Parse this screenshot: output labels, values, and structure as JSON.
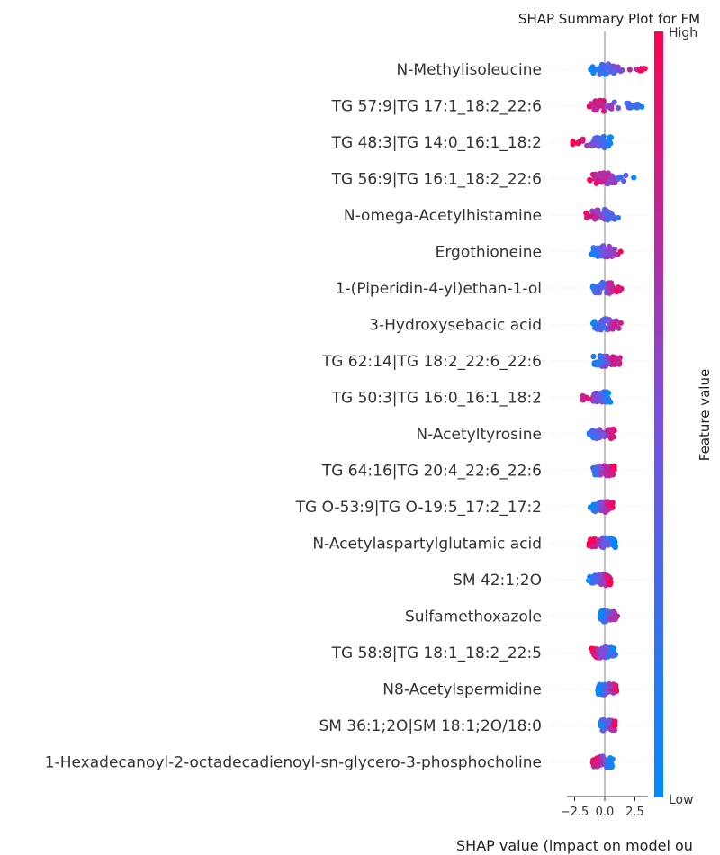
{
  "chart_data": {
    "type": "scatter",
    "title": "SHAP Summary Plot for FM",
    "xlabel": "SHAP value (impact on model ou",
    "colorbar_label": "Feature value",
    "colorbar_high": "High",
    "colorbar_low": "Low",
    "color_low": "#008bfb",
    "color_high": "#ff0052",
    "xlim": [
      -3.0,
      3.5
    ],
    "xticks": [
      -2.5,
      0.0,
      2.5
    ],
    "xtick_labels": [
      "−2.5",
      "0.0",
      "2.5"
    ],
    "zero_line": true,
    "features": [
      {
        "name": "N-Methylisoleucine",
        "range": [
          -1.3,
          3.6
        ],
        "lo_side": "left"
      },
      {
        "name": "TG 57:9|TG 17:1_18:2_22:6",
        "range": [
          -1.4,
          3.2
        ],
        "lo_side": "right"
      },
      {
        "name": "TG 48:3|TG 14:0_16:1_18:2",
        "range": [
          -2.8,
          0.6
        ],
        "lo_side": "right"
      },
      {
        "name": "TG 56:9|TG 16:1_18:2_22:6",
        "range": [
          -1.3,
          3.0
        ],
        "lo_side": "right"
      },
      {
        "name": "N-omega-Acetylhistamine",
        "range": [
          -1.6,
          1.2
        ],
        "lo_side": "right"
      },
      {
        "name": "Ergothioneine",
        "range": [
          -1.4,
          1.6
        ],
        "lo_side": "left"
      },
      {
        "name": "1-(Piperidin-4-yl)ethan-1-ol",
        "range": [
          -1.2,
          1.4
        ],
        "lo_side": "left"
      },
      {
        "name": "3-Hydroxysebacic acid",
        "range": [
          -1.2,
          1.6
        ],
        "lo_side": "left"
      },
      {
        "name": "TG 62:14|TG 18:2_22:6_22:6",
        "range": [
          -1.0,
          1.4
        ],
        "lo_side": "left"
      },
      {
        "name": "TG 50:3|TG 16:0_16:1_18:2",
        "range": [
          -2.0,
          0.5
        ],
        "lo_side": "right"
      },
      {
        "name": "N-Acetyltyrosine",
        "range": [
          -1.5,
          0.8
        ],
        "lo_side": "left"
      },
      {
        "name": "TG 64:16|TG 20:4_22:6_22:6",
        "range": [
          -1.3,
          0.8
        ],
        "lo_side": "left"
      },
      {
        "name": "TG O-53:9|TG O-19:5_17:2_17:2",
        "range": [
          -1.2,
          0.7
        ],
        "lo_side": "left"
      },
      {
        "name": "N-Acetylaspartylglutamic acid",
        "range": [
          -1.3,
          0.9
        ],
        "lo_side": "right"
      },
      {
        "name": "SM 42:1;2O",
        "range": [
          -1.4,
          0.5
        ],
        "lo_side": "left"
      },
      {
        "name": "Sulfamethoxazole",
        "range": [
          -0.4,
          1.2
        ],
        "lo_side": "left"
      },
      {
        "name": "TG 58:8|TG 18:1_18:2_22:5",
        "range": [
          -1.1,
          1.0
        ],
        "lo_side": "right"
      },
      {
        "name": "N8-Acetylspermidine",
        "range": [
          -0.6,
          1.0
        ],
        "lo_side": "left"
      },
      {
        "name": "SM 36:1;2O|SM 18:1;2O/18:0",
        "range": [
          -0.4,
          0.9
        ],
        "lo_side": "left"
      },
      {
        "name": "1-Hexadecanoyl-2-octadecadienoyl-sn-glycero-3-phosphocholine",
        "range": [
          -1.0,
          0.7
        ],
        "lo_side": "right"
      }
    ]
  }
}
